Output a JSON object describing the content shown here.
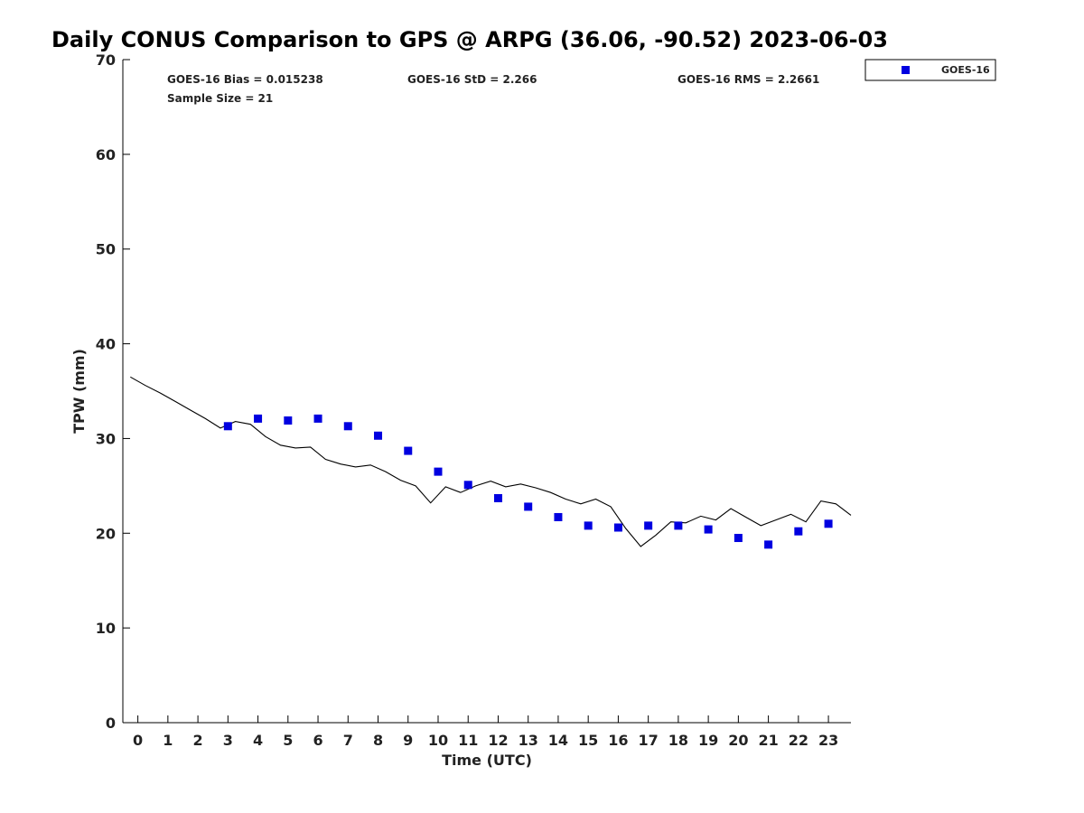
{
  "chart_data": {
    "type": "scatter",
    "title": "Daily CONUS Comparison to GPS @ ARPG (36.06, -90.52) 2023-06-03",
    "xlabel": "Time (UTC)",
    "ylabel": "TPW (mm)",
    "xlim": [
      -0.5,
      23.75
    ],
    "ylim": [
      0,
      70
    ],
    "x_ticks": [
      0,
      1,
      2,
      3,
      4,
      5,
      6,
      7,
      8,
      9,
      10,
      11,
      12,
      13,
      14,
      15,
      16,
      17,
      18,
      19,
      20,
      21,
      22,
      23
    ],
    "y_ticks": [
      0,
      10,
      20,
      30,
      40,
      50,
      60,
      70
    ],
    "grid": false,
    "legend_position": "top-right",
    "stats": {
      "bias": "GOES-16 Bias = 0.015238",
      "std": "GOES-16 StD = 2.266",
      "rms": "GOES-16 RMS = 2.2661",
      "sample": "Sample Size = 21"
    },
    "series": [
      {
        "name": "GOES-16",
        "kind": "scatter",
        "color": "#0000e0",
        "x": [
          3,
          4,
          5,
          6,
          7,
          8,
          9,
          10,
          11,
          12,
          13,
          14,
          15,
          16,
          17,
          18,
          19,
          20,
          21,
          22,
          23
        ],
        "y": [
          31.3,
          32.1,
          31.9,
          32.1,
          31.3,
          30.3,
          28.7,
          26.5,
          25.1,
          23.7,
          22.8,
          21.7,
          20.8,
          20.6,
          20.8,
          20.8,
          20.4,
          19.5,
          18.8,
          20.2,
          21.0
        ]
      },
      {
        "kind": "line",
        "color": "#000000",
        "x": [
          -0.25,
          0.25,
          0.75,
          1.25,
          1.75,
          2.25,
          2.75,
          3.25,
          3.75,
          4.25,
          4.75,
          5.25,
          5.75,
          6.25,
          6.75,
          7.25,
          7.75,
          8.25,
          8.75,
          9.25,
          9.75,
          10.25,
          10.75,
          11.25,
          11.75,
          12.25,
          12.75,
          13.25,
          13.75,
          14.25,
          14.75,
          15.25,
          15.75,
          16.25,
          16.75,
          17.25,
          17.75,
          18.25,
          18.75,
          19.25,
          19.75,
          20.25,
          20.75,
          21.25,
          21.75,
          22.25,
          22.75,
          23.25,
          23.75
        ],
        "y": [
          36.5,
          35.6,
          34.8,
          33.9,
          33.0,
          32.1,
          31.1,
          31.8,
          31.5,
          30.2,
          29.3,
          29.0,
          29.1,
          27.8,
          27.3,
          27.0,
          27.2,
          26.5,
          25.6,
          25.0,
          23.2,
          24.9,
          24.3,
          25.0,
          25.5,
          24.9,
          25.2,
          24.8,
          24.3,
          23.6,
          23.1,
          23.6,
          22.8,
          20.5,
          18.6,
          19.8,
          21.2,
          21.1,
          21.8,
          21.4,
          22.6,
          21.7,
          20.8,
          21.4,
          22.0,
          21.2,
          23.4,
          23.1,
          21.9
        ]
      }
    ]
  }
}
